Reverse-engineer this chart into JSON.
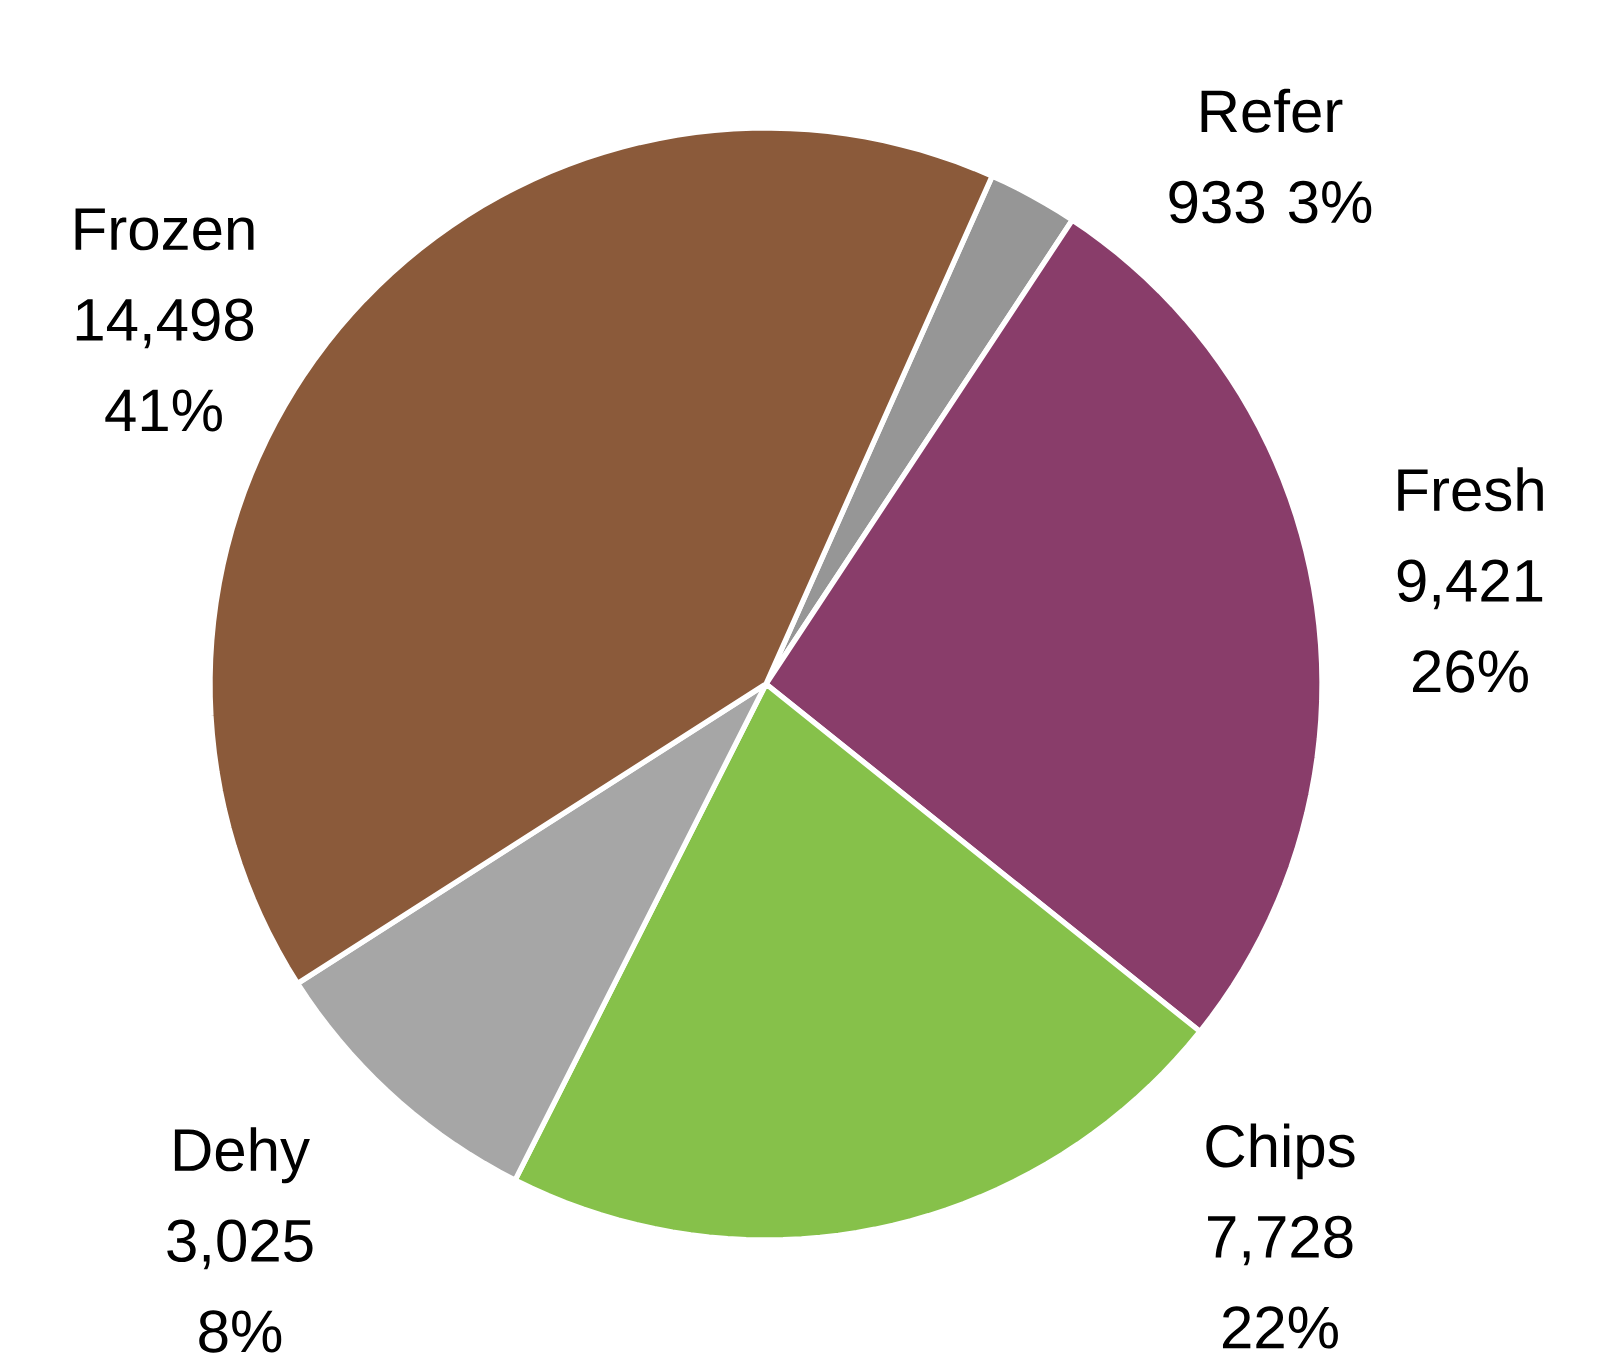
{
  "chart_data": {
    "type": "pie",
    "categories": [
      "Refer",
      "Fresh",
      "Chips",
      "Dehy",
      "Frozen"
    ],
    "values": [
      933,
      9421,
      7728,
      3025,
      14498
    ],
    "value_labels": [
      "933 3%",
      "9,421 26%",
      "7,728 22%",
      "3,025 8%",
      "14,498 41%"
    ],
    "colors": [
      "#969696",
      "#893d6a",
      "#86c14a",
      "#a6a6a6",
      "#8b5a3a"
    ]
  }
}
